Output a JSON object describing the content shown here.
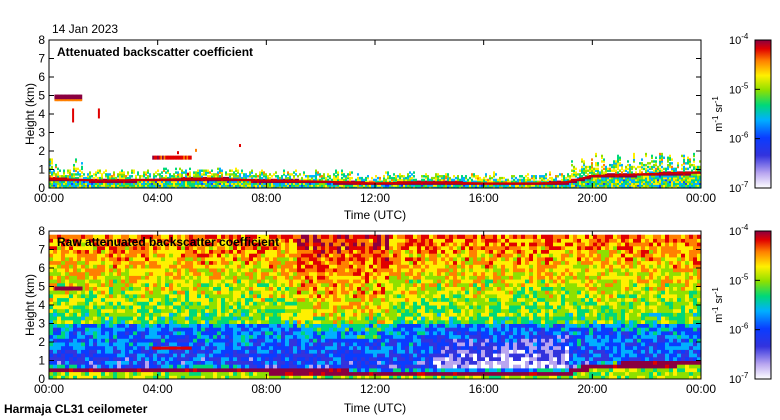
{
  "header": {
    "date": "14 Jan 2023"
  },
  "footer": {
    "instrument": "Harmaja CL31 ceilometer"
  },
  "chart_data": [
    {
      "type": "heatmap",
      "title": "Attenuated backscatter coefficient",
      "xlabel": "Time (UTC)",
      "ylabel": "Height (km)",
      "xlim": [
        0,
        24
      ],
      "ylim": [
        0,
        8
      ],
      "x_ticks": [
        0,
        4,
        8,
        12,
        16,
        20,
        24
      ],
      "x_tick_labels": [
        "00:00",
        "04:00",
        "08:00",
        "12:00",
        "16:00",
        "20:00",
        "00:00"
      ],
      "y_ticks": [
        0,
        1,
        2,
        3,
        4,
        5,
        6,
        7,
        8
      ],
      "y_tick_labels": [
        "0",
        "1",
        "2",
        "3",
        "4",
        "5",
        "6",
        "7",
        "8"
      ],
      "colorbar": {
        "label": "m-1 sr-1",
        "scale": "log",
        "range": [
          1e-07,
          0.0001
        ],
        "tick_labels": [
          "10-7",
          "10-6",
          "10-5",
          "10-4"
        ]
      },
      "features": {
        "boundary_layer_top_km": [
          [
            0,
            0.45
          ],
          [
            1,
            0.4
          ],
          [
            2,
            0.35
          ],
          [
            4,
            0.4
          ],
          [
            6,
            0.45
          ],
          [
            8,
            0.35
          ],
          [
            10,
            0.3
          ],
          [
            12,
            0.2
          ],
          [
            14,
            0.25
          ],
          [
            16,
            0.2
          ],
          [
            18,
            0.2
          ],
          [
            19,
            0.25
          ],
          [
            20,
            0.6
          ],
          [
            22,
            0.7
          ],
          [
            24,
            0.8
          ]
        ],
        "high_cloud": {
          "t_start": 0.2,
          "t_end": 1.2,
          "height_km": 4.9
        },
        "aerosol_layer": {
          "t_start": 3.8,
          "t_end": 5.2,
          "height_km": 1.65
        }
      }
    },
    {
      "type": "heatmap",
      "title": "Raw attenuated backscatter coefficient",
      "xlabel": "Time (UTC)",
      "ylabel": "Height (km)",
      "xlim": [
        0,
        24
      ],
      "ylim": [
        0,
        8
      ],
      "x_ticks": [
        0,
        4,
        8,
        12,
        16,
        20,
        24
      ],
      "x_tick_labels": [
        "00:00",
        "04:00",
        "08:00",
        "12:00",
        "16:00",
        "20:00",
        "00:00"
      ],
      "y_ticks": [
        0,
        1,
        2,
        3,
        4,
        5,
        6,
        7,
        8
      ],
      "y_tick_labels": [
        "0",
        "1",
        "2",
        "3",
        "4",
        "5",
        "6",
        "7",
        "8"
      ],
      "colorbar": {
        "label": "m-1 sr-1",
        "scale": "log",
        "range": [
          1e-07,
          0.0001
        ],
        "tick_labels": [
          "10-7",
          "10-6",
          "10-5",
          "10-4"
        ]
      }
    }
  ],
  "colors": {
    "colormap": [
      "#ffffff",
      "#b9a6f0",
      "#3333dd",
      "#0a3cff",
      "#00b0ff",
      "#00d878",
      "#8ee000",
      "#fff000",
      "#ff8000",
      "#e00000",
      "#8a0040"
    ],
    "axis": "#000000"
  }
}
